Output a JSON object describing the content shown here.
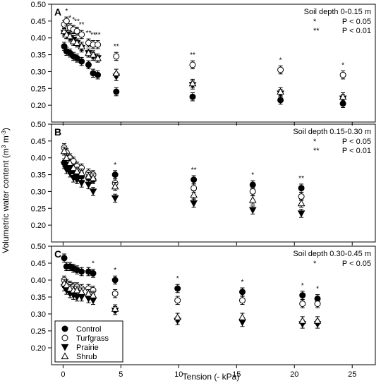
{
  "chart_data": {
    "type": "scatter",
    "xlabel": "Tension (- kPa)",
    "ylabel": "Volumetric water content (m3 m-3)",
    "ylabel_parts": {
      "base": "Volumetric water content (m",
      "sup1": "3",
      "mid": " m",
      "sup2": "-3",
      "end": ")"
    },
    "xlim": [
      -1,
      27
    ],
    "xticks": [
      0,
      5,
      10,
      15,
      20,
      25
    ],
    "xtick_labels": [
      "0",
      "5",
      "10",
      "15",
      "20",
      "25"
    ],
    "legend": {
      "placement": "bottom-left",
      "entries": [
        {
          "name": "Control",
          "marker": "filled-circle"
        },
        {
          "name": "Turfgrass",
          "marker": "open-circle"
        },
        {
          "name": "Prairie",
          "marker": "filled-triangle-down"
        },
        {
          "name": "Shrub",
          "marker": "open-triangle-up"
        }
      ]
    },
    "panels": [
      {
        "letter": "A",
        "ylim": [
          0.15,
          0.5
        ],
        "yticks": [
          0.2,
          0.25,
          0.3,
          0.35,
          0.4,
          0.45,
          0.5
        ],
        "ytick_labels": [
          "0.20",
          "0.25",
          "0.30",
          "0.35",
          "0.40",
          "0.45",
          "0.50"
        ],
        "title": "Soil depth 0-0.15 m",
        "sig_lines": [
          {
            "stars": "*",
            "label": "P < 0.05"
          },
          {
            "stars": "**",
            "label": "P < 0.01"
          }
        ],
        "x": [
          0.1,
          0.3,
          0.6,
          0.9,
          1.2,
          1.6,
          2.2,
          2.6,
          3.0,
          4.6,
          11.2,
          18.8,
          24.2
        ],
        "significance": [
          "",
          "*",
          "*",
          "*",
          "**",
          "**",
          "**",
          "**",
          "**",
          "**",
          "**",
          "*",
          "*"
        ],
        "series": [
          {
            "name": "Control",
            "values": [
              0.375,
              0.36,
              0.355,
              0.345,
              0.34,
              0.33,
              0.32,
              0.295,
              0.29,
              0.24,
              0.225,
              0.215,
              0.205
            ]
          },
          {
            "name": "Turfgrass",
            "values": [
              0.44,
              0.45,
              0.43,
              0.425,
              0.42,
              0.41,
              0.385,
              0.38,
              0.38,
              0.345,
              0.32,
              0.305,
              0.29
            ]
          },
          {
            "name": "Prairie",
            "values": [
              0.415,
              0.41,
              0.4,
              0.395,
              0.385,
              0.37,
              0.355,
              0.345,
              0.34,
              0.285,
              0.26,
              0.235,
              0.22
            ]
          },
          {
            "name": "Shrub",
            "values": [
              0.42,
              0.41,
              0.405,
              0.39,
              0.385,
              0.375,
              0.355,
              0.35,
              0.34,
              0.295,
              0.265,
              0.24,
              0.225
            ]
          }
        ]
      },
      {
        "letter": "B",
        "ylim": [
          0.15,
          0.5
        ],
        "yticks": [
          0.2,
          0.25,
          0.3,
          0.35,
          0.4,
          0.45,
          0.5
        ],
        "ytick_labels": [
          "0.20",
          "0.25",
          "0.30",
          "0.35",
          "0.40",
          "0.45",
          "0.50"
        ],
        "title": "Soil depth 0.15-0.30 m",
        "sig_lines": [
          {
            "stars": "*",
            "label": "P < 0.05"
          },
          {
            "stars": "**",
            "label": "P < 0.01"
          }
        ],
        "x": [
          0.1,
          0.3,
          0.6,
          0.9,
          1.2,
          1.6,
          2.2,
          2.6,
          4.5,
          11.3,
          16.4,
          20.6
        ],
        "significance": [
          "",
          "",
          "",
          "",
          "",
          "",
          "",
          "",
          "*",
          "**",
          "*",
          "**"
        ],
        "series": [
          {
            "name": "Control",
            "values": [
              0.385,
              0.38,
              0.37,
              0.36,
              0.35,
              0.345,
              0.34,
              0.335,
              0.35,
              0.335,
              0.32,
              0.31
            ]
          },
          {
            "name": "Turfgrass",
            "values": [
              0.43,
              0.415,
              0.4,
              0.39,
              0.375,
              0.37,
              0.355,
              0.35,
              0.325,
              0.31,
              0.3,
              0.285
            ]
          },
          {
            "name": "Prairie",
            "values": [
              0.38,
              0.365,
              0.355,
              0.34,
              0.335,
              0.325,
              0.32,
              0.3,
              0.28,
              0.265,
              0.245,
              0.235
            ]
          },
          {
            "name": "Shrub",
            "values": [
              0.42,
              0.4,
              0.385,
              0.37,
              0.36,
              0.355,
              0.345,
              0.34,
              0.315,
              0.29,
              0.275,
              0.265
            ]
          }
        ]
      },
      {
        "letter": "C",
        "ylim": [
          0.15,
          0.5
        ],
        "yticks": [
          0.2,
          0.25,
          0.3,
          0.35,
          0.4,
          0.45,
          0.5
        ],
        "ytick_labels": [
          "0.20",
          "0.25",
          "0.30",
          "0.35",
          "0.40",
          "0.45",
          "0.50"
        ],
        "title": "Soil depth 0.30-0.45 m",
        "sig_lines": [
          {
            "stars": "*",
            "label": "P < 0.05"
          }
        ],
        "x": [
          0.1,
          0.3,
          0.6,
          0.9,
          1.2,
          1.6,
          2.2,
          2.6,
          4.5,
          9.9,
          15.5,
          20.7,
          22.0
        ],
        "significance": [
          "",
          "",
          "",
          "",
          "",
          "",
          "",
          "*",
          "*",
          "*",
          "*",
          "*",
          "*"
        ],
        "series": [
          {
            "name": "Control",
            "values": [
              0.465,
              0.44,
              0.44,
              0.435,
              0.43,
              0.425,
              0.425,
              0.42,
              0.4,
              0.375,
              0.365,
              0.355,
              0.345
            ]
          },
          {
            "name": "Turfgrass",
            "values": [
              0.4,
              0.39,
              0.385,
              0.38,
              0.38,
              0.375,
              0.375,
              0.37,
              0.36,
              0.34,
              0.34,
              0.33,
              0.33
            ]
          },
          {
            "name": "Prairie",
            "values": [
              0.38,
              0.37,
              0.36,
              0.355,
              0.35,
              0.35,
              0.345,
              0.34,
              0.31,
              0.28,
              0.275,
              0.27,
              0.27
            ]
          },
          {
            "name": "Shrub",
            "values": [
              0.39,
              0.385,
              0.375,
              0.37,
              0.37,
              0.365,
              0.36,
              0.355,
              0.315,
              0.29,
              0.29,
              0.28,
              0.28
            ]
          }
        ]
      }
    ]
  }
}
